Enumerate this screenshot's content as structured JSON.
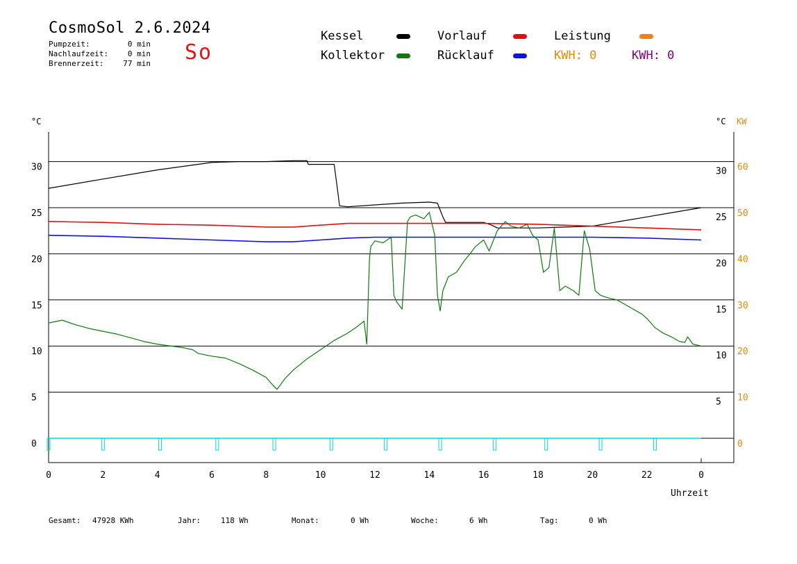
{
  "header": {
    "title": "CosmoSol 2.6.2024",
    "day": "So",
    "stats": [
      {
        "label": "Pumpzeit:",
        "value": "0 min"
      },
      {
        "label": "Nachlaufzeit:",
        "value": "0 min"
      },
      {
        "label": "Brennerzeit:",
        "value": "77 min"
      }
    ]
  },
  "legend": {
    "items": [
      {
        "label": "Kessel",
        "color": "#000000"
      },
      {
        "label": "Vorlauf",
        "color": "#e01010"
      },
      {
        "label": "Leistung",
        "color": "#f08018"
      },
      {
        "label": "Kollektor",
        "color": "#107810"
      },
      {
        "label": "Rücklauf",
        "color": "#1010e0"
      }
    ],
    "kwh_orange": "KWH: 0",
    "kwh_orange_color": "#e08a10",
    "kwh_purple": "KWH: 0",
    "kwh_purple_color": "#800080"
  },
  "footer": {
    "items": [
      {
        "label": "Gesamt:",
        "value": "47928 KWh"
      },
      {
        "label": "Jahr:",
        "value": "118 Wh"
      },
      {
        "label": "Monat:",
        "value": "0 Wh"
      },
      {
        "label": "Woche:",
        "value": "6 Wh"
      },
      {
        "label": "Tag:",
        "value": "0 Wh"
      }
    ]
  },
  "chart_data": {
    "type": "line",
    "xlabel": "Uhrzeit",
    "ylabel_left": "°C",
    "ylabel_right": "°C",
    "ylabel_right2": "KW",
    "xlim": [
      0,
      24
    ],
    "ylim": [
      -2,
      33
    ],
    "x_ticks": [
      "0",
      "2",
      "4",
      "6",
      "8",
      "10",
      "12",
      "14",
      "16",
      "18",
      "20",
      "22",
      "0"
    ],
    "y_ticks_left": [
      "0",
      "5",
      "10",
      "15",
      "20",
      "25",
      "30"
    ],
    "y_ticks_right": [
      "5",
      "10",
      "15",
      "20",
      "25",
      "30"
    ],
    "y_ticks_kw": [
      "0",
      "10",
      "20",
      "30",
      "40",
      "50",
      "60"
    ],
    "grid": true,
    "series": [
      {
        "name": "Kessel",
        "color": "#000000",
        "x": [
          0,
          2,
          4,
          6,
          7,
          8,
          9,
          9.5,
          9.55,
          10.5,
          10.6,
          10.7,
          11,
          12,
          13,
          14,
          14.3,
          14.5,
          14.6,
          16,
          16.3,
          16.5,
          17,
          18,
          19,
          20,
          21,
          22,
          23,
          24
        ],
        "y": [
          27.1,
          28.1,
          29.1,
          29.9,
          30.0,
          30.0,
          30.1,
          30.1,
          29.7,
          29.7,
          27.5,
          25.2,
          25.1,
          25.3,
          25.5,
          25.6,
          25.5,
          24.0,
          23.4,
          23.4,
          23.1,
          22.8,
          22.8,
          22.8,
          22.9,
          23.0,
          23.5,
          24.0,
          24.5,
          25.0
        ]
      },
      {
        "name": "Vorlauf",
        "color": "#e01010",
        "x": [
          0,
          2,
          4,
          6,
          8,
          9,
          10,
          11,
          12,
          14,
          16,
          18,
          20,
          22,
          24
        ],
        "y": [
          23.5,
          23.4,
          23.2,
          23.1,
          22.9,
          22.9,
          23.1,
          23.3,
          23.3,
          23.3,
          23.3,
          23.2,
          23.0,
          22.8,
          22.6
        ]
      },
      {
        "name": "Rücklauf",
        "color": "#1010e0",
        "x": [
          0,
          2,
          4,
          6,
          8,
          9,
          10,
          11,
          12,
          14,
          16,
          18,
          20,
          22,
          24
        ],
        "y": [
          22.0,
          21.9,
          21.7,
          21.5,
          21.3,
          21.3,
          21.5,
          21.7,
          21.8,
          21.8,
          21.8,
          21.8,
          21.8,
          21.7,
          21.5
        ]
      },
      {
        "name": "Kollektor",
        "color": "#107810",
        "x": [
          0,
          0.5,
          1,
          1.5,
          2,
          2.5,
          3,
          3.5,
          4,
          4.5,
          5,
          5.3,
          5.5,
          6,
          6.5,
          7,
          7.5,
          8,
          8.2,
          8.4,
          8.7,
          9,
          9.5,
          10,
          10.5,
          11,
          11.3,
          11.6,
          11.7,
          11.8,
          11.85,
          12,
          12.3,
          12.6,
          12.7,
          12.8,
          13.0,
          13.2,
          13.3,
          13.5,
          13.8,
          14.0,
          14.2,
          14.3,
          14.4,
          14.5,
          14.7,
          15,
          15.3,
          15.5,
          15.7,
          16,
          16.2,
          16.5,
          16.8,
          17.0,
          17.3,
          17.6,
          17.8,
          18.0,
          18.2,
          18.4,
          18.6,
          18.8,
          19.0,
          19.3,
          19.5,
          19.7,
          19.9,
          20.1,
          20.3,
          20.6,
          20.9,
          21.2,
          21.5,
          21.8,
          22.0,
          22.3,
          22.6,
          22.9,
          23.2,
          23.4,
          23.5,
          23.7,
          24.0
        ],
        "y": [
          12.5,
          12.8,
          12.3,
          11.9,
          11.6,
          11.3,
          10.9,
          10.5,
          10.2,
          10.0,
          9.8,
          9.6,
          9.2,
          8.9,
          8.7,
          8.1,
          7.4,
          6.6,
          5.9,
          5.3,
          6.5,
          7.4,
          8.6,
          9.6,
          10.6,
          11.4,
          12.0,
          12.7,
          10.2,
          19.5,
          20.8,
          21.4,
          21.2,
          21.8,
          15.5,
          14.8,
          14.0,
          23.5,
          24.0,
          24.2,
          23.8,
          24.5,
          22.0,
          15.5,
          13.8,
          16.0,
          17.5,
          18.0,
          19.3,
          20.0,
          20.8,
          21.5,
          20.3,
          22.5,
          23.5,
          23.0,
          22.8,
          23.2,
          22.0,
          21.5,
          18.0,
          18.5,
          22.8,
          16.0,
          16.5,
          16.0,
          15.5,
          22.5,
          20.5,
          16.0,
          15.5,
          15.2,
          15.0,
          14.5,
          14.0,
          13.5,
          13.0,
          12.0,
          11.4,
          11.0,
          10.5,
          10.4,
          11.0,
          10.2,
          10.0
        ]
      }
    ],
    "pump_markers": [
      0,
      2,
      4.1,
      6.2,
      8.3,
      10.4,
      12.4,
      14.4,
      16.4,
      18.3,
      20.3,
      22.3
    ]
  }
}
